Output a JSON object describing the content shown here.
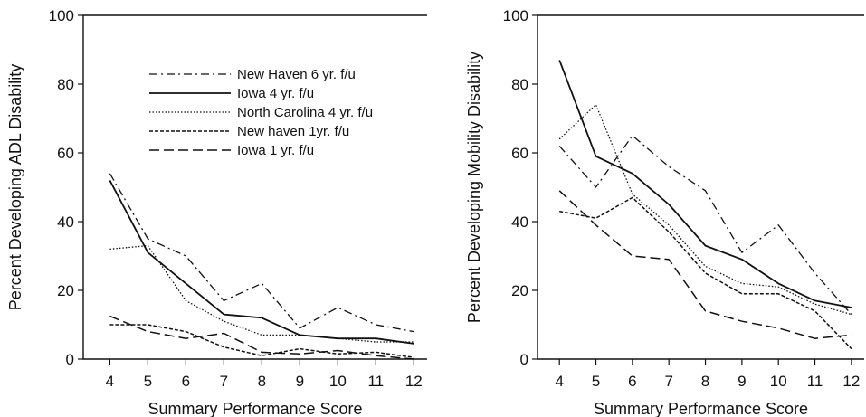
{
  "chart_data": [
    {
      "type": "line",
      "title": "",
      "xlabel": "Summary Performance Score",
      "ylabel": "Percent Developing ADL Disability",
      "x": [
        4,
        5,
        6,
        7,
        8,
        9,
        10,
        11,
        12
      ],
      "xlim": [
        3.3,
        12.35
      ],
      "ylim": [
        0,
        100
      ],
      "yticks": [
        0,
        20,
        40,
        60,
        80,
        100
      ],
      "grid": false,
      "legend": "top-right",
      "series": [
        {
          "name": "New Haven 6 yr. f/u",
          "style": "dashdot",
          "values": [
            54,
            35,
            30,
            17,
            22,
            9,
            15,
            10,
            8
          ]
        },
        {
          "name": "Iowa 4 yr. f/u",
          "style": "solid",
          "values": [
            52,
            31,
            22,
            13,
            12,
            7,
            6,
            6,
            4.5
          ]
        },
        {
          "name": "North Carolina 4 yr. f/u",
          "style": "dotted",
          "values": [
            32,
            33,
            17,
            11,
            7,
            7,
            6,
            5,
            5
          ]
        },
        {
          "name": "New haven 1yr. f/u",
          "style": "shortdash",
          "values": [
            10,
            10,
            8,
            3.5,
            1,
            3,
            1.5,
            2,
            0.5
          ]
        },
        {
          "name": "Iowa 1 yr. f/u",
          "style": "longdash",
          "values": [
            12.5,
            8,
            6,
            7.5,
            2,
            1.5,
            2.5,
            1,
            0
          ]
        }
      ]
    },
    {
      "type": "line",
      "title": "",
      "xlabel": "Summary Performance Score",
      "ylabel": "Percent Developing Mobility Disability",
      "x": [
        4,
        5,
        6,
        7,
        8,
        9,
        10,
        11,
        12
      ],
      "xlim": [
        3.4,
        12.35
      ],
      "ylim": [
        0,
        100
      ],
      "yticks": [
        0,
        20,
        40,
        60,
        80,
        100
      ],
      "grid": false,
      "series": [
        {
          "style": "dashdot",
          "values": [
            62,
            50,
            65,
            56,
            49,
            31,
            39,
            25,
            13
          ]
        },
        {
          "style": "solid",
          "values": [
            87,
            59,
            54,
            45,
            33,
            29,
            22,
            17,
            15
          ]
        },
        {
          "style": "dotted",
          "values": [
            64,
            74,
            48,
            39,
            27,
            22,
            21,
            16,
            13
          ]
        },
        {
          "style": "shortdash",
          "values": [
            43,
            41,
            47,
            37,
            25,
            19,
            19,
            14,
            3
          ]
        },
        {
          "style": "longdash",
          "values": [
            49,
            39,
            30,
            29,
            14,
            11,
            9,
            6,
            7
          ]
        }
      ]
    }
  ]
}
